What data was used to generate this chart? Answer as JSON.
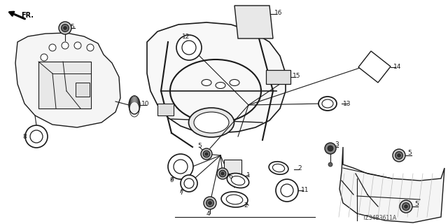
{
  "diagram_code": "TZ34B3611A",
  "background_color": "#ffffff",
  "line_color": "#1a1a1a",
  "fig_width": 6.4,
  "fig_height": 3.2,
  "dpi": 100
}
